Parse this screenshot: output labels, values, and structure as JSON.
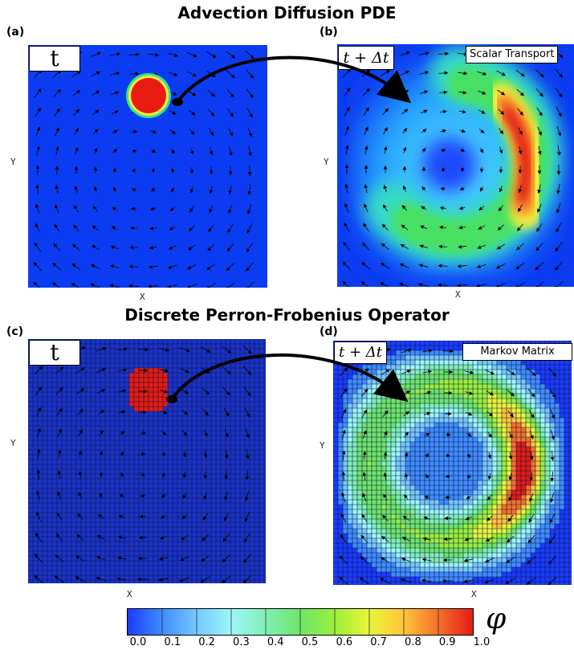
{
  "titles": {
    "top": "Advection Diffusion PDE",
    "bottom": "Discrete Perron-Frobenius Operator"
  },
  "panels": {
    "a": {
      "label": "(a)",
      "time": "t",
      "xlabel": "X",
      "ylabel": "Y"
    },
    "b": {
      "label": "(b)",
      "time": "t + Δt",
      "name": "Scalar Transport",
      "xlabel": "X",
      "ylabel": "Y"
    },
    "c": {
      "label": "(c)",
      "time": "t",
      "xlabel": "X",
      "ylabel": "Y"
    },
    "d": {
      "label": "(d)",
      "time": "t + Δt",
      "name": "Markov Matrix",
      "xlabel": "X",
      "ylabel": "Y"
    }
  },
  "colorbar": {
    "symbol": "φ",
    "ticks": [
      "0.0",
      "0.1",
      "0.2",
      "0.3",
      "0.4",
      "0.5",
      "0.6",
      "0.7",
      "0.8",
      "0.9",
      "1.0"
    ],
    "colors": [
      "#1a3cff",
      "#3f8cff",
      "#76c8ff",
      "#9cf7f7",
      "#7ff0b4",
      "#6fe56a",
      "#9cef3c",
      "#e8f53a",
      "#ffc43a",
      "#f5702a",
      "#e41b17"
    ]
  }
}
